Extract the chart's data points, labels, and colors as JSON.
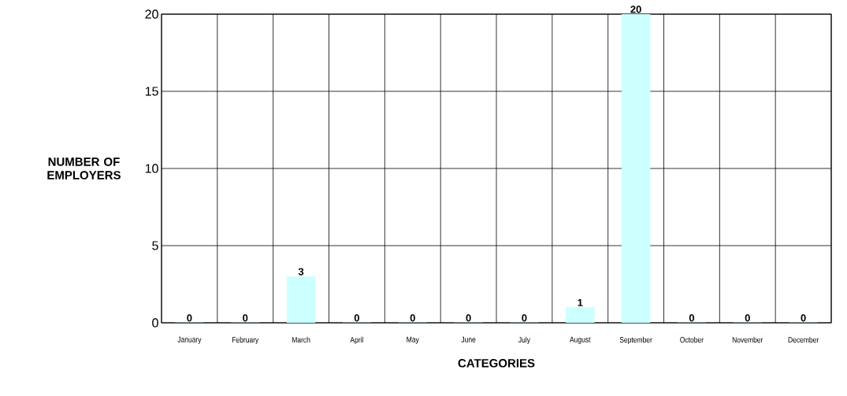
{
  "chart_data": {
    "type": "bar",
    "xlabel": "CATEGORIES",
    "ylabel": "NUMBER OF EMPLOYERS",
    "categories": [
      "January",
      "February",
      "March",
      "April",
      "May",
      "June",
      "July",
      "August",
      "September",
      "October",
      "November",
      "December"
    ],
    "values": [
      0,
      0,
      3,
      0,
      0,
      0,
      0,
      1,
      20,
      0,
      0,
      0
    ],
    "color": "#ccffff",
    "ylim": [
      0,
      20
    ],
    "yticks": [
      0,
      5,
      10,
      15,
      20
    ],
    "grid": true,
    "data_labels": true
  }
}
